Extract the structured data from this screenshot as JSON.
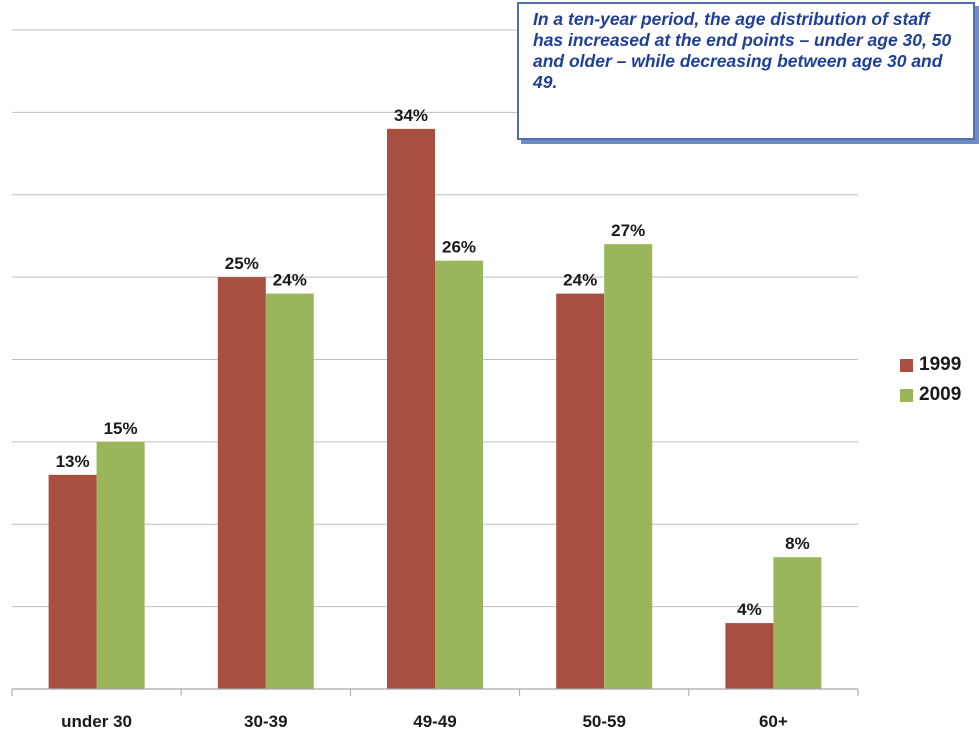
{
  "chart_data": {
    "type": "bar",
    "categories": [
      "under 30",
      "30-39",
      "49-49",
      "50-59",
      "60+"
    ],
    "series": [
      {
        "name": "1999",
        "values": [
          13,
          25,
          34,
          24,
          4
        ],
        "labels": [
          "13%",
          "25%",
          "34%",
          "24%",
          "4%"
        ],
        "color": "#a84f42"
      },
      {
        "name": "2009",
        "values": [
          15,
          24,
          26,
          27,
          8
        ],
        "labels": [
          "15%",
          "24%",
          "26%",
          "27%",
          "8%"
        ],
        "color": "#9bb55a"
      }
    ],
    "ylim": [
      0,
      40
    ],
    "grid": true,
    "legend_position": "right",
    "annotation": "In a ten-year period, the age distribution of staff has increased at the end points – under age 30, 50 and older – while decreasing between age 30 and 49."
  }
}
